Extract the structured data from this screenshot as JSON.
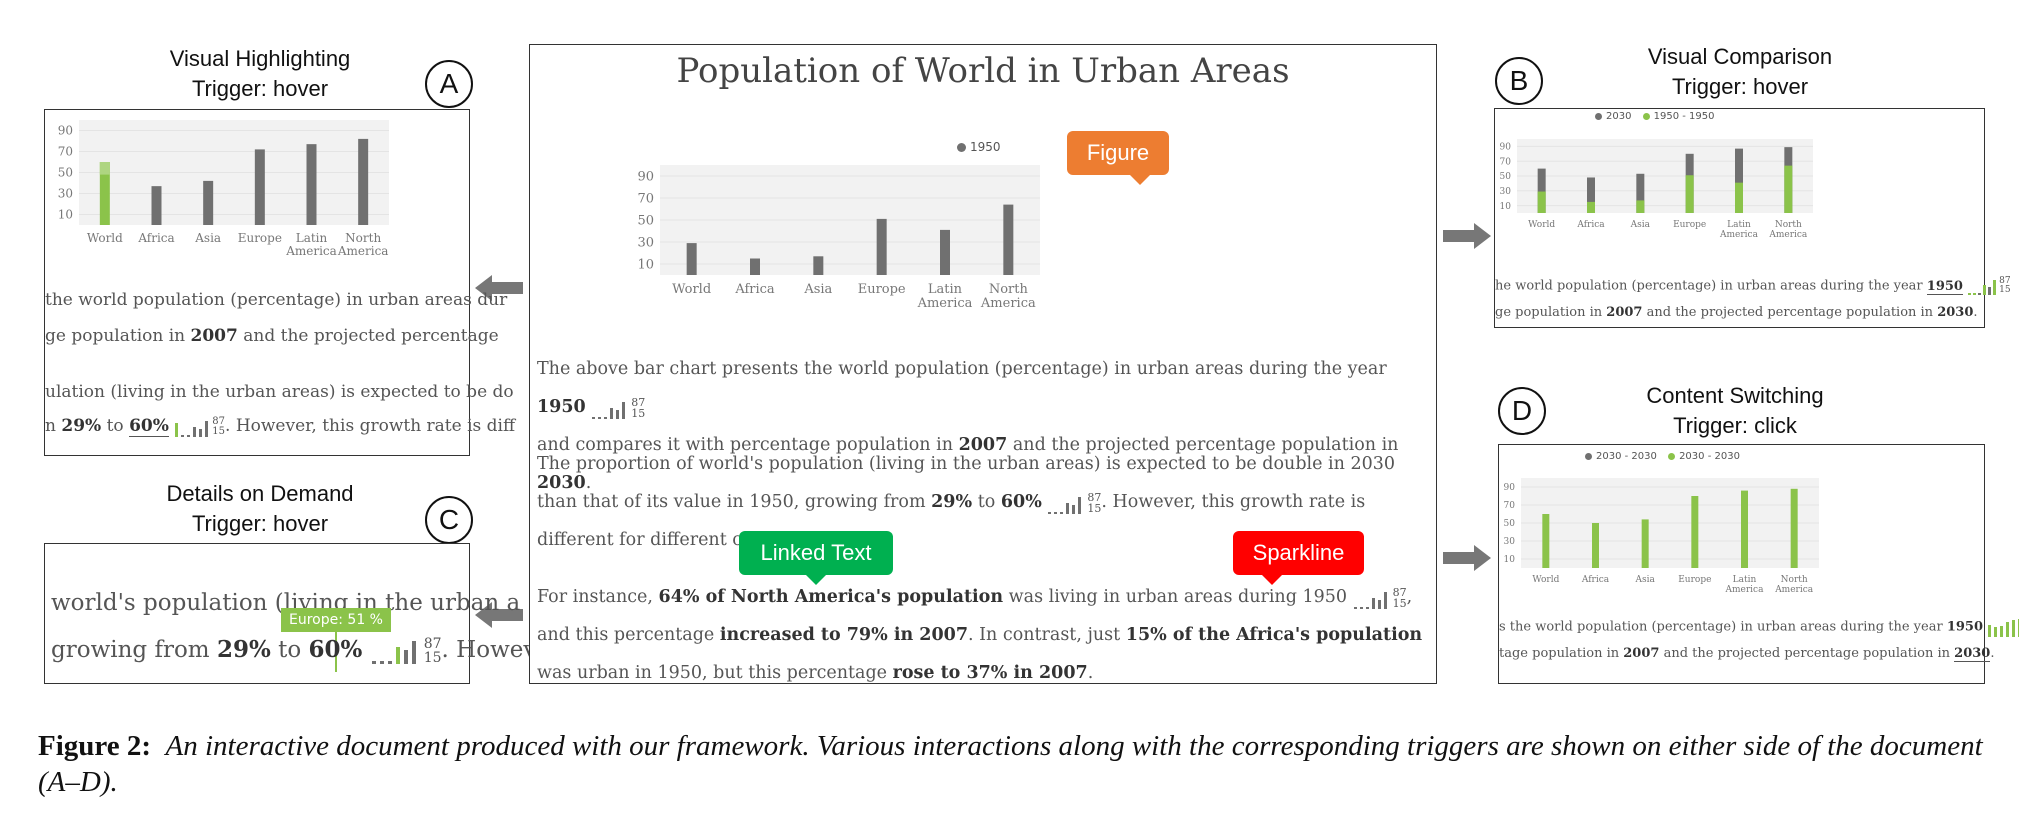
{
  "figure_caption": {
    "label": "Figure 2:",
    "text": "An interactive document produced with our framework. Various interactions along with the corresponding triggers are shown on either side of the document (A–D)."
  },
  "panels": {
    "A": {
      "letter": "A",
      "title": "Visual Highlighting",
      "trigger": "Trigger: hover"
    },
    "B": {
      "letter": "B",
      "title": "Visual Comparison",
      "trigger": "Trigger: hover"
    },
    "C": {
      "letter": "C",
      "title": "Details on Demand",
      "trigger": "Trigger: hover",
      "tooltip": "Europe: 51 %"
    },
    "D": {
      "letter": "D",
      "title": "Content Switching",
      "trigger": "Trigger: click"
    }
  },
  "document": {
    "title": "Population of World in Urban Areas",
    "legend": "1950",
    "callouts": {
      "figure": "Figure",
      "linked_text": "Linked Text",
      "sparkline": "Sparkline"
    },
    "p1": {
      "a": "The above bar chart presents the world population (percentage) in urban areas during the year",
      "year": "1950",
      "b": "and compares it with percentage population in",
      "y2007": "2007",
      "c": "and the projected percentage population in",
      "y2030": "2030",
      "end": "."
    },
    "p2": {
      "a": "The proportion of world's population (living in the urban areas) is expected to be double in 2030 than that of its value in 1950, growing from",
      "p29": "29%",
      "to": "to",
      "p60": "60%",
      "b": ". However, this growth rate is different for different continents."
    },
    "p3": {
      "a": "For instance,",
      "na": "64% of North America's population",
      "b": "was living in urban areas during 1950",
      "c": ", and this percentage",
      "inc": "increased to 79% in 2007",
      "d": ". In contrast, just",
      "af": "15% of the Africa's population",
      "e": "was urban in 1950, but this percentage",
      "rose": "rose to 37% in 2007",
      "end": "."
    }
  },
  "panel_texts": {
    "A1": "the world population (percentage) in urban areas dur",
    "A2a": "ge population in",
    "A2b": "2007",
    "A2c": "and the projected percentage",
    "A3": "ulation (living in the urban areas) is expected to be do",
    "A4a": "29%",
    "A4b": "to",
    "A4c": "60%",
    "A4d": ". However, this growth rate is diff",
    "A4pre": "n",
    "B1a": "he world population (percentage) in urban areas during the year",
    "B1b": "1950",
    "B2a": "ge population in",
    "B2b": "2007",
    "B2c": "and the projected percentage population in",
    "B2d": "2030",
    "B2e": ".",
    "C1": "world's population (living in the urban a",
    "C2a": "growing from",
    "C2b": "29%",
    "C2c": "to",
    "C2d": "60%",
    "C2e": ". Howeve",
    "D1a": "s the world population (percentage) in urban areas during the year",
    "D1b": "1950",
    "D2a": "tage population in",
    "D2b": "2007",
    "D2c": "and the projected percentage population in",
    "D2d": "2030",
    "D2e": ".",
    "B_legend_1": "2030",
    "B_legend_2": "1950 - 1950",
    "D_legend_1": "2030 - 2030",
    "D_legend_2": "2030 - 2030"
  },
  "sparkline": {
    "top": "87",
    "bottom": "15"
  },
  "colors": {
    "gray_bar": "#707070",
    "green": "#8bc34a",
    "green_dark": "#6aa84f",
    "figure_callout": "#ed7d31",
    "linked_callout": "#00b050",
    "spark_callout": "#ff0000",
    "arrow": "#777777",
    "plot_bg": "#f2f2f2"
  },
  "chart_data": [
    {
      "type": "bar",
      "title": "Population of World in Urban Areas",
      "legend": [
        "1950"
      ],
      "categories": [
        "World",
        "Africa",
        "Asia",
        "Europe",
        "Latin America",
        "North America"
      ],
      "series": [
        {
          "name": "1950",
          "values": [
            29,
            15,
            17,
            51,
            41,
            64
          ]
        }
      ],
      "ylim": [
        0,
        100
      ],
      "yticks": [
        10,
        30,
        50,
        70,
        90
      ]
    },
    {
      "type": "bar",
      "panel": "A",
      "categories": [
        "World",
        "Africa",
        "Asia",
        "Europe",
        "Latin America",
        "North America"
      ],
      "series": [
        {
          "values": [
            60,
            37,
            42,
            72,
            77,
            82
          ]
        }
      ],
      "highlight": {
        "category": "World",
        "value": 60
      },
      "ylim": [
        0,
        100
      ],
      "yticks": [
        10,
        30,
        50,
        70,
        90
      ]
    },
    {
      "type": "bar",
      "panel": "B",
      "legend": [
        "2030",
        "1950 - 1950"
      ],
      "categories": [
        "World",
        "Africa",
        "Asia",
        "Europe",
        "Latin America",
        "North America"
      ],
      "series": [
        {
          "name": "2030",
          "values": [
            60,
            48,
            53,
            80,
            87,
            89
          ]
        },
        {
          "name": "1950 - 1950",
          "values": [
            29,
            15,
            17,
            51,
            41,
            64
          ]
        }
      ],
      "ylim": [
        0,
        100
      ],
      "yticks": [
        10,
        30,
        50,
        70,
        90
      ]
    },
    {
      "type": "bar",
      "panel": "D",
      "legend": [
        "2030 - 2030",
        "2030 - 2030"
      ],
      "categories": [
        "World",
        "Africa",
        "Asia",
        "Europe",
        "Latin America",
        "North America"
      ],
      "series": [
        {
          "name": "2030 - 2030",
          "values": [
            60,
            50,
            54,
            80,
            86,
            88
          ]
        }
      ],
      "ylim": [
        0,
        100
      ],
      "yticks": [
        10,
        30,
        50,
        70,
        90
      ]
    }
  ]
}
